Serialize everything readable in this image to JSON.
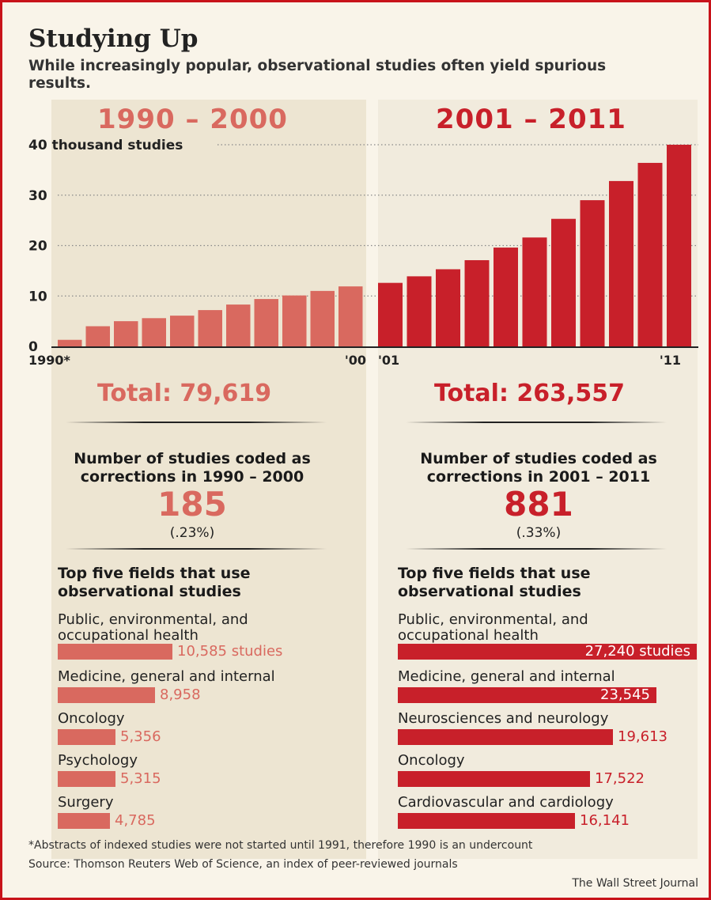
{
  "title": "Studying Up",
  "subtitle": "While increasingly popular, observational studies often yield spurious results.",
  "colors": {
    "left": "#d9695f",
    "right": "#c8202a",
    "background": "#f9f4e9",
    "frame": "#c8131a"
  },
  "periods": {
    "left": "1990 – 2000",
    "right": "2001 – 2011"
  },
  "chart_data": {
    "type": "bar",
    "ylabel": "40 thousand studies",
    "ylim": [
      0,
      40
    ],
    "yticks": [
      0,
      10,
      20,
      30
    ],
    "grid": true,
    "x_tick_labels": {
      "1990": "1990*",
      "2000": "'00",
      "2001": "'01",
      "2011": "'11"
    },
    "series": [
      {
        "years": [
          1990,
          1991,
          1992,
          1993,
          1994,
          1995,
          1996,
          1997,
          1998,
          1999,
          2000
        ],
        "values": [
          1.3,
          4,
          5,
          5.6,
          6.1,
          7.2,
          8.3,
          9.4,
          10.1,
          11,
          11.9
        ],
        "color": "#d9695f"
      },
      {
        "years": [
          2001,
          2002,
          2003,
          2004,
          2005,
          2006,
          2007,
          2008,
          2009,
          2010,
          2011
        ],
        "values": [
          12.6,
          13.9,
          15.3,
          17.1,
          19.6,
          21.6,
          25.3,
          29,
          32.8,
          36.4,
          40
        ],
        "color": "#c8202a"
      }
    ]
  },
  "totals": {
    "left": "Total: 79,619",
    "right": "Total: 263,557"
  },
  "corrections": {
    "left": {
      "heading_line1": "Number of studies coded as",
      "heading_line2": "corrections in 1990 – 2000",
      "count": "185",
      "percent": "(.23%)"
    },
    "right": {
      "heading_line1": "Number of studies coded as",
      "heading_line2": "corrections in 2001 – 2011",
      "count": "881",
      "percent": "(.33%)"
    }
  },
  "fields": {
    "heading_line1": "Top five fields that use",
    "heading_line2": "observational studies",
    "left": [
      {
        "label": "Public, environmental, and",
        "label2": "occupational health",
        "value": 10585,
        "text": "10,585 studies"
      },
      {
        "label": "Medicine, general and internal",
        "label2": "",
        "value": 8958,
        "text": "8,958"
      },
      {
        "label": "Oncology",
        "label2": "",
        "value": 5356,
        "text": "5,356"
      },
      {
        "label": "Psychology",
        "label2": "",
        "value": 5315,
        "text": "5,315"
      },
      {
        "label": "Surgery",
        "label2": "",
        "value": 4785,
        "text": "4,785"
      }
    ],
    "right": [
      {
        "label": "Public, environmental, and",
        "label2": "occupational health",
        "value": 27240,
        "text": "27,240 studies"
      },
      {
        "label": "Medicine, general and internal",
        "label2": "",
        "value": 23545,
        "text": "23,545"
      },
      {
        "label": "Neurosciences and neurology",
        "label2": "",
        "value": 19613,
        "text": "19,613"
      },
      {
        "label": "Oncology",
        "label2": "",
        "value": 17522,
        "text": "17,522"
      },
      {
        "label": "Cardiovascular and cardiology",
        "label2": "",
        "value": 16141,
        "text": "16,141"
      }
    ]
  },
  "footnote": "*Abstracts of indexed studies were not started until 1991, therefore 1990 is an undercount",
  "source": "Source: Thomson Reuters Web of Science, an index of peer-reviewed journals",
  "credit": "The Wall Street Journal"
}
